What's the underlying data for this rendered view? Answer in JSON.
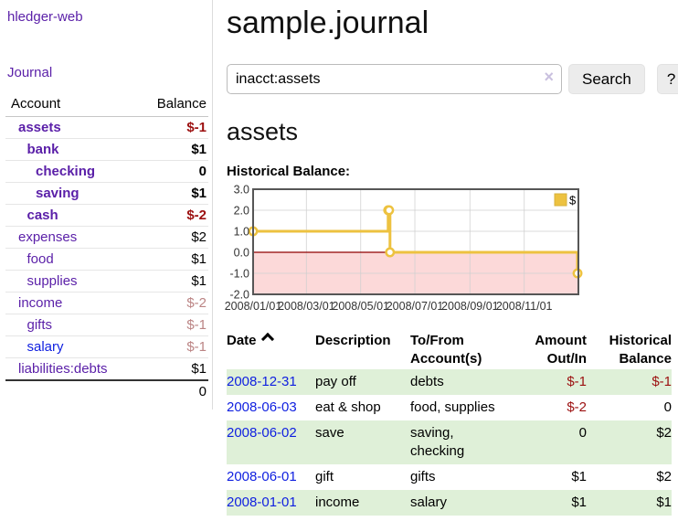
{
  "app": {
    "brand": "hledger-web",
    "nav_journal": "Journal"
  },
  "sidebar": {
    "columns": {
      "account": "Account",
      "balance": "Balance"
    },
    "accounts": [
      {
        "name": "assets",
        "depth": 1,
        "bold": true,
        "balance": "$-1",
        "neg": "strong"
      },
      {
        "name": "bank",
        "depth": 2,
        "bold": true,
        "balance": "$1",
        "neg": "none"
      },
      {
        "name": "checking",
        "depth": 3,
        "bold": true,
        "balance": "0",
        "neg": "none"
      },
      {
        "name": "saving",
        "depth": 3,
        "bold": true,
        "balance": "$1",
        "neg": "none"
      },
      {
        "name": "cash",
        "depth": 2,
        "bold": true,
        "balance": "$-2",
        "neg": "strong"
      },
      {
        "name": "expenses",
        "depth": 1,
        "bold": false,
        "balance": "$2",
        "neg": "none"
      },
      {
        "name": "food",
        "depth": 2,
        "bold": false,
        "balance": "$1",
        "neg": "none"
      },
      {
        "name": "supplies",
        "depth": 2,
        "bold": false,
        "balance": "$1",
        "neg": "none"
      },
      {
        "name": "income",
        "depth": 1,
        "bold": false,
        "balance": "$-2",
        "neg": "soft"
      },
      {
        "name": "gifts",
        "depth": 2,
        "bold": false,
        "balance": "$-1",
        "neg": "soft"
      },
      {
        "name": "salary",
        "depth": 2,
        "bold": false,
        "balance": "$-1",
        "neg": "soft",
        "link_blue": true
      },
      {
        "name": "liabilities:debts",
        "depth": 1,
        "bold": false,
        "balance": "$1",
        "neg": "none"
      }
    ],
    "total": "0"
  },
  "header": {
    "title": "sample.journal"
  },
  "search": {
    "value": "inacct:assets",
    "clear_icon": "×",
    "button": "Search",
    "help_button": "?"
  },
  "account_page": {
    "heading": "assets",
    "chart_title": "Historical Balance:"
  },
  "chart_data": {
    "type": "line",
    "style": "step",
    "title": "Historical Balance:",
    "series": [
      {
        "name": "$",
        "color": "#edc240",
        "points": [
          [
            "2008-01-01",
            1
          ],
          [
            "2008-06-01",
            2
          ],
          [
            "2008-06-02",
            2
          ],
          [
            "2008-06-03",
            0
          ],
          [
            "2008-12-31",
            -1
          ]
        ]
      }
    ],
    "y_ticks": [
      3.0,
      2.0,
      1.0,
      0.0,
      -1.0,
      -2.0
    ],
    "y_tick_labels": [
      "3.0",
      "2.0",
      "1.0",
      "0.0",
      "-1.0",
      "-2.0"
    ],
    "x_ticks": [
      "2008/01/01",
      "2008/03/01",
      "2008/05/01",
      "2008/07/01",
      "2008/09/01",
      "2008/11/01"
    ],
    "ylim": [
      -2,
      3
    ],
    "xlim": [
      "2008-01-01",
      "2009-01-01"
    ],
    "grid": true,
    "negative_region_color": "#fcd9d9",
    "zero_line_color": "#8f0000",
    "legend": {
      "label": "$",
      "position": "top-right"
    }
  },
  "register": {
    "columns": [
      {
        "label": "Date",
        "align": "left",
        "sorted": "asc"
      },
      {
        "label": "Description",
        "align": "left"
      },
      {
        "label": "To/From Account(s)",
        "align": "left"
      },
      {
        "label": "Amount Out/In",
        "align": "right"
      },
      {
        "label": "Historical Balance",
        "align": "right"
      }
    ],
    "rows": [
      {
        "date": "2008-12-31",
        "description": "pay off",
        "accounts": "debts",
        "amount": "$-1",
        "balance": "$-1"
      },
      {
        "date": "2008-06-03",
        "description": "eat & shop",
        "accounts": "food, supplies",
        "amount": "$-2",
        "balance": "0"
      },
      {
        "date": "2008-06-02",
        "description": "save",
        "accounts": "saving, checking",
        "amount": "0",
        "balance": "$2"
      },
      {
        "date": "2008-06-01",
        "description": "gift",
        "accounts": "gifts",
        "amount": "$1",
        "balance": "$2"
      },
      {
        "date": "2008-01-01",
        "description": "income",
        "accounts": "salary",
        "amount": "$1",
        "balance": "$1"
      }
    ]
  },
  "colors": {
    "link_purple": "#5a1fa8",
    "link_blue": "#0f1fe0",
    "negative_strong": "#9c1010",
    "negative_soft": "#bb8484",
    "row_highlight_green": "#dff0d8",
    "chart_line_gold": "#edc240",
    "chart_negative_region": "#fcd9d9",
    "chart_zero_line": "#8f0000"
  }
}
